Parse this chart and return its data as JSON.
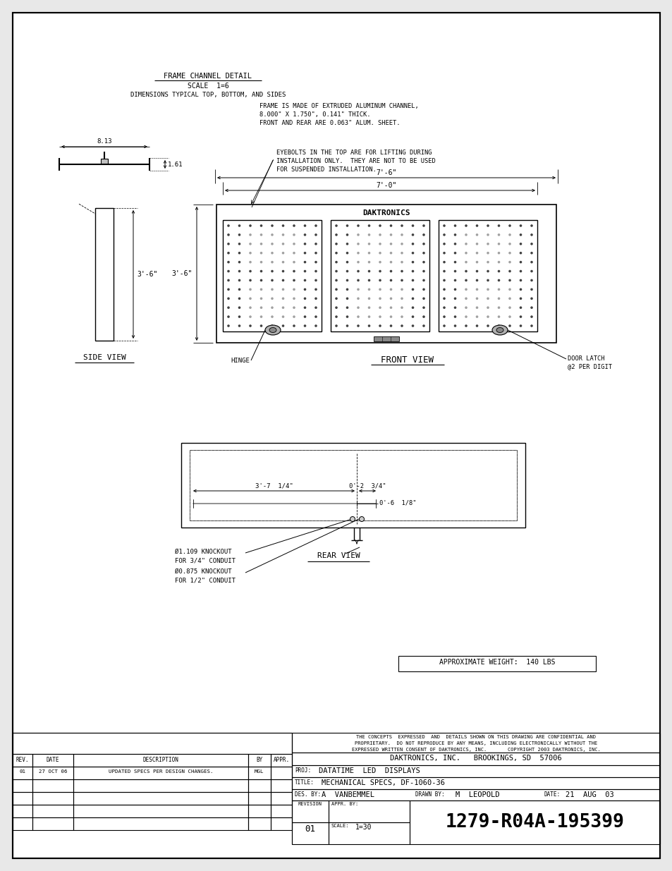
{
  "bg_color": "#e8e8e8",
  "page_bg": "#ffffff",
  "line_color": "#000000",
  "frame_channel_title": "FRAME CHANNEL DETAIL",
  "scale_1_6": "SCALE  1=6",
  "dimensions_typical": "DIMENSIONS TYPICAL TOP, BOTTOM, AND SIDES",
  "frame_text_line1": "FRAME IS MADE OF EXTRUDED ALUMINUM CHANNEL,",
  "frame_text_line2": "8.000\" X 1.750\", 0.141\" THICK.",
  "frame_text_line3": "FRONT AND REAR ARE 0.063\" ALUM. SHEET.",
  "eyebolt_text_line1": "EYEBOLTS IN THE TOP ARE FOR LIFTING DURING",
  "eyebolt_text_line2": "INSTALLATION ONLY.  THEY ARE NOT TO BE USED",
  "eyebolt_text_line3": "FOR SUSPENDED INSTALLATION.",
  "dim_7_6": "7'-6\"",
  "dim_7_0": "7'-0\"",
  "dim_3_6": "3'-6\"",
  "front_view_label": "FRONT VIEW",
  "side_view_label": "SIDE VIEW",
  "rear_view_label": "REAR VIEW",
  "daktronics_label": "DAKTRONICS",
  "hinge_label": "HINGE",
  "door_latch_line1": "DOOR LATCH",
  "door_latch_line2": "@2 PER DIGIT",
  "rear_dim1": "3'-7  1/4\"",
  "rear_dim2": "0'-2  3/4\"",
  "rear_dim3": "0'-6  1/8\"",
  "knockout1_line1": "Ø1.109 KNOCKOUT",
  "knockout1_line2": "FOR 3/4\" CONDUIT",
  "knockout2_line1": "Ø0.875 KNOCKOUT",
  "knockout2_line2": "FOR 1/2\" CONDUIT",
  "weight_text": "APPROXIMATE WEIGHT:  140 LBS",
  "tb_conf1": "THE CONCEPTS  EXPRESSED  AND  DETAILS SHOWN ON THIS DRAWING ARE CONFIDENTIAL AND",
  "tb_conf2": "PROPRIETARY.  DO NOT REPRODUCE BY ANY MEANS, INCLUDING ELECTRONICALLY WITHOUT THE",
  "tb_conf3": "EXPRESSED WRITTEN CONSENT OF DAKTRONICS, INC.       COPYRIGHT 2003 DAKTRONICS, INC.",
  "tb_company": "DAKTRONICS, INC.   BROOKINGS, SD  57006",
  "tb_proj_label": "PROJ:",
  "tb_proj_value": "DATATIME  LED  DISPLAYS",
  "tb_title_label": "TITLE:",
  "tb_title_value": "MECHANICAL SPECS, DF-1060-36",
  "tb_des_label": "DES. BY:",
  "tb_des_value": "A  VANBEMMEL",
  "tb_drawn_label": "DRAWN BY:",
  "tb_drawn_value": "M  LEOPOLD",
  "tb_date_label": "DATE:",
  "tb_date_value": "21  AUG  03",
  "tb_rev_label": "REVISION",
  "tb_rev_value": "01",
  "tb_appr_label": "APPR. BY:",
  "tb_scale_label": "SCALE:",
  "tb_scale_value": "1=30",
  "tb_drawing_number": "1279-R04A-195399",
  "rev_col1": "REV.",
  "rev_col2": "DATE",
  "rev_col3": "DESCRIPTION",
  "rev_col4": "BY",
  "rev_col5": "APPR.",
  "rev_r1c1": "01",
  "rev_r1c2": "27 OCT 06",
  "rev_r1c3": "UPDATED SPECS PER DESIGN CHANGES.",
  "rev_r1c4": "MGL",
  "rev_r1c5": "",
  "side_dim_813": "8.13",
  "side_dim_161": "1.61"
}
